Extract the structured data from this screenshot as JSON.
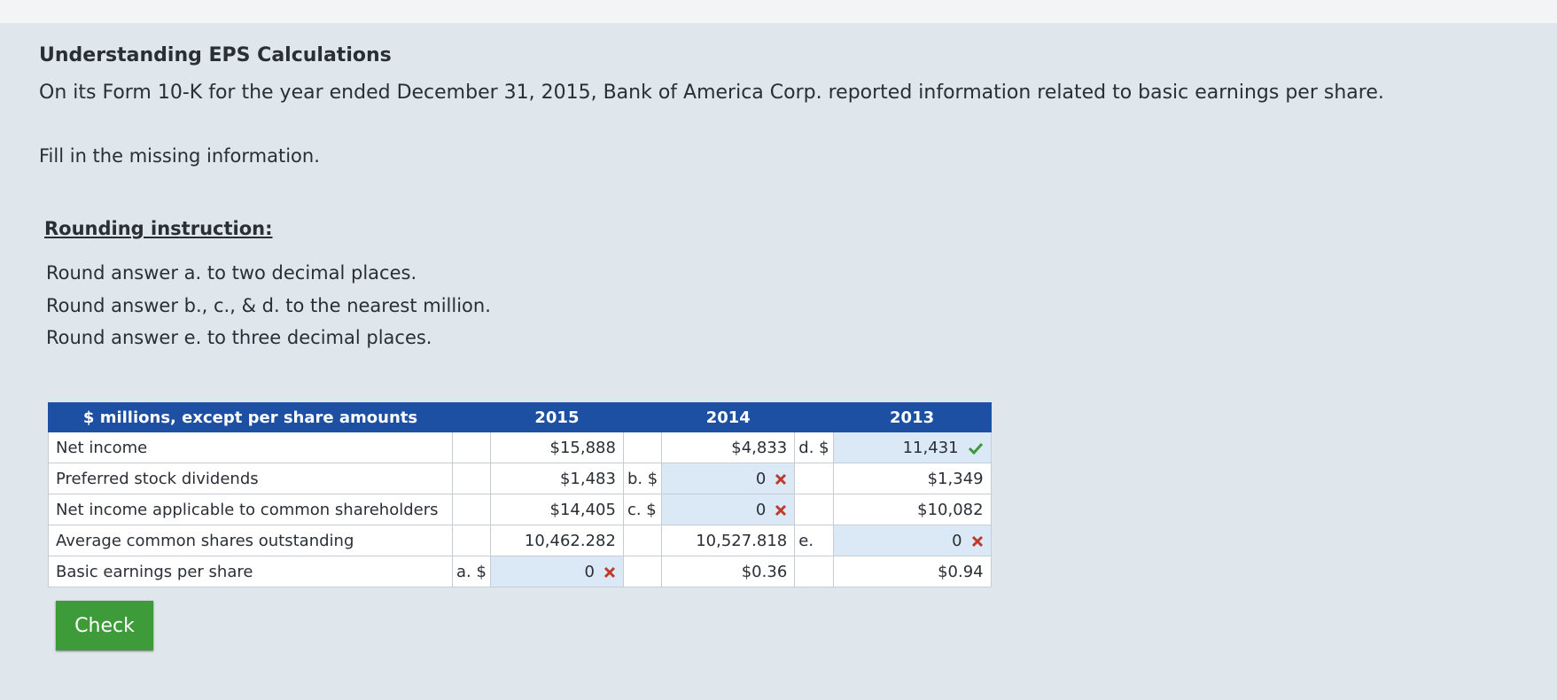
{
  "header": {
    "title": "Understanding EPS Calculations",
    "intro": "On its Form 10-K for the year ended December 31, 2015, Bank of America Corp. reported information related to basic earnings per share.",
    "prompt": "Fill in the missing information."
  },
  "rounding": {
    "heading": "Rounding instruction:",
    "lines": [
      "Round answer a. to two decimal places.",
      "Round answer b., c., & d. to the nearest million.",
      "Round answer e. to three decimal places."
    ]
  },
  "table": {
    "columns": [
      "$ millions, except per share amounts",
      "2015",
      "2014",
      "2013"
    ],
    "rows": [
      [
        "Net income",
        null,
        "$15,888",
        null,
        "$4,833",
        "d. $",
        "11,431"
      ],
      [
        "Preferred stock dividends",
        null,
        "$1,483",
        "b. $",
        "0",
        null,
        "$1,349"
      ],
      [
        "Net income applicable to common shareholders",
        null,
        "$14,405",
        "c. $",
        "0",
        null,
        "$10,082"
      ],
      [
        "Average common shares outstanding",
        null,
        "10,462.282",
        null,
        "10,527.818",
        "e.",
        "0"
      ],
      [
        "Basic earnings per share",
        "a. $",
        "0",
        null,
        "$0.36",
        null,
        "$0.94"
      ]
    ]
  },
  "button": "Check"
}
